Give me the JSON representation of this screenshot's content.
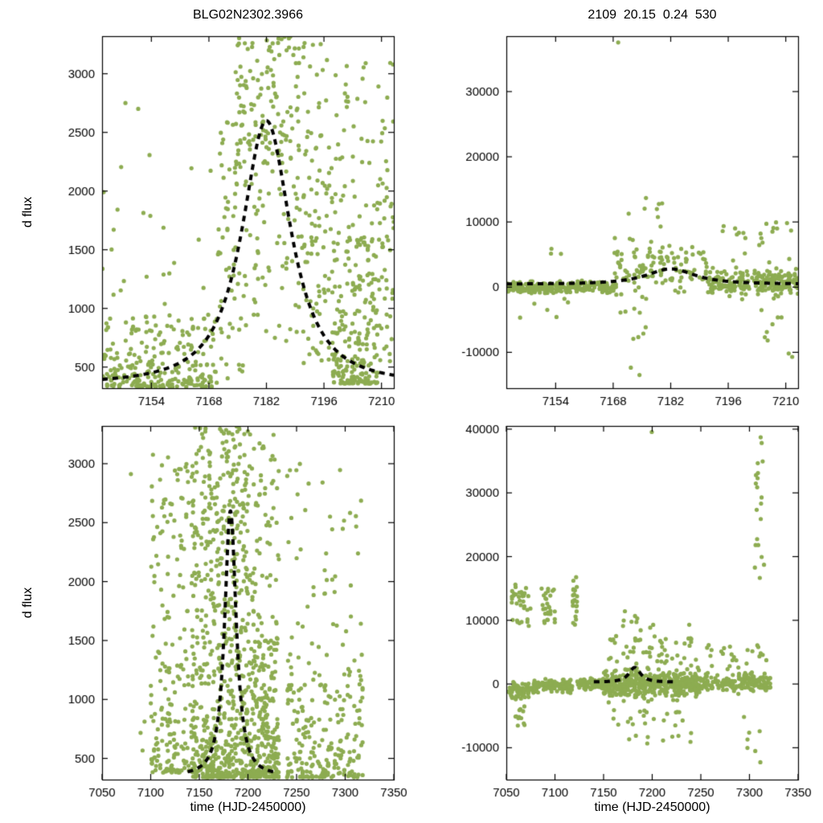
{
  "figure": {
    "background": "#ffffff",
    "point_color": "#8dac51",
    "curve_color": "#000000"
  },
  "chart_data": [
    {
      "panel": "top-left",
      "type": "scatter",
      "title": "BLG02N2302.3966",
      "xlabel": "",
      "ylabel": "d flux",
      "xlim": [
        7142,
        7213
      ],
      "ylim": [
        320,
        3320
      ],
      "xticks": [
        7154,
        7168,
        7182,
        7196,
        7210
      ],
      "yticks": [
        500,
        1000,
        1500,
        2000,
        2500,
        3000
      ],
      "grid": false,
      "legend": false,
      "point_color": "#8dac51",
      "model_curve": {
        "style": "dashed",
        "color": "#000000",
        "shape": "microlensing-peak",
        "t0": 7182,
        "baseline": 350,
        "amplitude": 2250,
        "width": 8,
        "power": 1.2,
        "peak_value": 2600,
        "x_range": [
          7142,
          7213
        ]
      },
      "scatter_clusters": [
        {
          "x": [
            7142,
            7170
          ],
          "y": [
            330,
            950
          ],
          "n": 260,
          "dist": "bottom"
        },
        {
          "x": [
            7142,
            7170
          ],
          "y": [
            950,
            2350
          ],
          "n": 22,
          "dist": "uniform"
        },
        {
          "x": [
            7146,
            7152
          ],
          "y": [
            2700,
            3100
          ],
          "n": 2,
          "dist": "uniform"
        },
        {
          "x": [
            7170,
            7178
          ],
          "y": [
            400,
            2600
          ],
          "n": 70,
          "dist": "uniform"
        },
        {
          "x": [
            7174,
            7190
          ],
          "y": [
            2200,
            3320
          ],
          "n": 130,
          "dist": "uniform"
        },
        {
          "x": [
            7178,
            7191
          ],
          "y": [
            700,
            2200
          ],
          "n": 60,
          "dist": "uniform"
        },
        {
          "x": [
            7191,
            7198
          ],
          "y": [
            500,
            2500
          ],
          "n": 80,
          "dist": "uniform"
        },
        {
          "x": [
            7191,
            7197
          ],
          "y": [
            2500,
            3300
          ],
          "n": 15,
          "dist": "uniform"
        },
        {
          "x": [
            7198,
            7209
          ],
          "y": [
            360,
            1650
          ],
          "n": 220,
          "dist": "bottom"
        },
        {
          "x": [
            7198,
            7209
          ],
          "y": [
            1650,
            3100
          ],
          "n": 40,
          "dist": "uniform"
        },
        {
          "x": [
            7209,
            7213
          ],
          "y": [
            400,
            3100
          ],
          "n": 55,
          "dist": "uniform"
        }
      ]
    },
    {
      "panel": "top-right",
      "type": "scatter",
      "title": "2109  20.15  0.24  530",
      "xlabel": "",
      "ylabel": "",
      "xlim": [
        7142,
        7213
      ],
      "ylim": [
        -15500,
        38500
      ],
      "xticks": [
        7154,
        7168,
        7182,
        7196,
        7210
      ],
      "yticks": [
        -10000,
        0,
        10000,
        20000,
        30000
      ],
      "grid": false,
      "legend": false,
      "point_color": "#8dac51",
      "model_curve": {
        "style": "dashed",
        "color": "#000000",
        "shape": "microlensing-peak",
        "t0": 7182,
        "baseline": 450,
        "amplitude": 2350,
        "width": 8,
        "power": 1.2,
        "peak_value": 2800,
        "x_range": [
          7142,
          7213
        ]
      },
      "scatter_clusters": [
        {
          "x": [
            7142,
            7169
          ],
          "y": [
            -1300,
            1300
          ],
          "n": 260,
          "dist": "center"
        },
        {
          "x": [
            7145,
            7160
          ],
          "y": [
            -4800,
            -1500
          ],
          "n": 6,
          "dist": "uniform"
        },
        {
          "x": [
            7151,
            7156
          ],
          "y": [
            4500,
            6800
          ],
          "n": 3,
          "dist": "uniform"
        },
        {
          "x": [
            7168,
            7191
          ],
          "y": [
            -2500,
            8500
          ],
          "n": 130,
          "dist": "center"
        },
        {
          "x": [
            7170,
            7180
          ],
          "y": [
            8500,
            14800
          ],
          "n": 8,
          "dist": "uniform"
        },
        {
          "x": [
            7169,
            7176
          ],
          "y": [
            -9500,
            -2500
          ],
          "n": 8,
          "dist": "uniform"
        },
        {
          "x": [
            7172,
            7175
          ],
          "y": [
            -13800,
            -11000
          ],
          "n": 2,
          "dist": "uniform"
        },
        {
          "x": [
            7191,
            7213
          ],
          "y": [
            -2200,
            3500
          ],
          "n": 230,
          "dist": "center"
        },
        {
          "x": [
            7194,
            7212
          ],
          "y": [
            3500,
            10500
          ],
          "n": 22,
          "dist": "uniform"
        },
        {
          "x": [
            7203,
            7212
          ],
          "y": [
            -12800,
            -3500
          ],
          "n": 9,
          "dist": "uniform"
        },
        {
          "x": [
            7169,
            7172
          ],
          "y": [
            36800,
            38000
          ],
          "n": 1,
          "dist": "uniform"
        }
      ]
    },
    {
      "panel": "bottom-left",
      "type": "scatter",
      "title": "",
      "xlabel": "time (HJD-2450000)",
      "ylabel": "d flux",
      "xlim": [
        7050,
        7350
      ],
      "ylim": [
        320,
        3320
      ],
      "xticks": [
        7050,
        7100,
        7150,
        7200,
        7250,
        7300,
        7350
      ],
      "yticks": [
        500,
        1000,
        1500,
        2000,
        2500,
        3000
      ],
      "grid": false,
      "legend": false,
      "point_color": "#8dac51",
      "model_curve": {
        "style": "dashed",
        "color": "#000000",
        "shape": "microlensing-peak",
        "t0": 7182,
        "baseline": 350,
        "amplitude": 2250,
        "width": 8,
        "power": 1.2,
        "peak_value": 2600,
        "x_range": [
          7138,
          7228
        ]
      },
      "scatter_clusters": [
        {
          "x": [
            7078,
            7082
          ],
          "y": [
            2800,
            3000
          ],
          "n": 1,
          "dist": "uniform"
        },
        {
          "x": [
            7086,
            7096
          ],
          "y": [
            500,
            850
          ],
          "n": 3,
          "dist": "uniform"
        },
        {
          "x": [
            7100,
            7142
          ],
          "y": [
            380,
            1400
          ],
          "n": 120,
          "dist": "bottom"
        },
        {
          "x": [
            7100,
            7142
          ],
          "y": [
            1400,
            3100
          ],
          "n": 70,
          "dist": "uniform"
        },
        {
          "x": [
            7142,
            7200
          ],
          "y": [
            340,
            1500
          ],
          "n": 380,
          "dist": "bottom"
        },
        {
          "x": [
            7142,
            7200
          ],
          "y": [
            1500,
            3320
          ],
          "n": 280,
          "dist": "uniform"
        },
        {
          "x": [
            7200,
            7232
          ],
          "y": [
            340,
            1500
          ],
          "n": 260,
          "dist": "bottom"
        },
        {
          "x": [
            7200,
            7232
          ],
          "y": [
            1500,
            3250
          ],
          "n": 70,
          "dist": "uniform"
        },
        {
          "x": [
            7240,
            7318
          ],
          "y": [
            340,
            1400
          ],
          "n": 220,
          "dist": "bottom"
        },
        {
          "x": [
            7240,
            7318
          ],
          "y": [
            1400,
            3000
          ],
          "n": 45,
          "dist": "uniform"
        }
      ]
    },
    {
      "panel": "bottom-right",
      "type": "scatter",
      "title": "",
      "xlabel": "time (HJD-2450000)",
      "ylabel": "",
      "xlim": [
        7050,
        7350
      ],
      "ylim": [
        -15000,
        40500
      ],
      "xticks": [
        7050,
        7100,
        7150,
        7200,
        7250,
        7300,
        7350
      ],
      "yticks": [
        -10000,
        0,
        10000,
        20000,
        30000,
        40000
      ],
      "grid": false,
      "legend": false,
      "point_color": "#8dac51",
      "model_curve": {
        "style": "dashed",
        "color": "#000000",
        "shape": "microlensing-peak",
        "t0": 7182,
        "baseline": 300,
        "amplitude": 2300,
        "width": 8,
        "power": 1.2,
        "peak_value": 2600,
        "x_range": [
          7140,
          7225
        ]
      },
      "scatter_clusters": [
        {
          "x": [
            7052,
            7078
          ],
          "y": [
            -3000,
            800
          ],
          "n": 70,
          "dist": "center"
        },
        {
          "x": [
            7055,
            7075
          ],
          "y": [
            9000,
            15800
          ],
          "n": 35,
          "dist": "uniform"
        },
        {
          "x": [
            7058,
            7070
          ],
          "y": [
            -7000,
            -3000
          ],
          "n": 12,
          "dist": "uniform"
        },
        {
          "x": [
            7085,
            7100
          ],
          "y": [
            9500,
            15200
          ],
          "n": 28,
          "dist": "uniform"
        },
        {
          "x": [
            7078,
            7118
          ],
          "y": [
            -1800,
            1200
          ],
          "n": 130,
          "dist": "center"
        },
        {
          "x": [
            7118,
            7123
          ],
          "y": [
            9000,
            16800
          ],
          "n": 22,
          "dist": "uniform"
        },
        {
          "x": [
            7123,
            7150
          ],
          "y": [
            -1200,
            1200
          ],
          "n": 90,
          "dist": "center"
        },
        {
          "x": [
            7150,
            7250
          ],
          "y": [
            -3200,
            3200
          ],
          "n": 430,
          "dist": "center"
        },
        {
          "x": [
            7155,
            7245
          ],
          "y": [
            3200,
            9500
          ],
          "n": 55,
          "dist": "uniform"
        },
        {
          "x": [
            7160,
            7240
          ],
          "y": [
            -9500,
            -3200
          ],
          "n": 28,
          "dist": "uniform"
        },
        {
          "x": [
            7170,
            7185
          ],
          "y": [
            9500,
            12500
          ],
          "n": 6,
          "dist": "uniform"
        },
        {
          "x": [
            7193,
            7200
          ],
          "y": [
            38500,
            39800
          ],
          "n": 1,
          "dist": "uniform"
        },
        {
          "x": [
            7250,
            7322
          ],
          "y": [
            -1800,
            2200
          ],
          "n": 170,
          "dist": "center"
        },
        {
          "x": [
            7255,
            7318
          ],
          "y": [
            2200,
            6500
          ],
          "n": 25,
          "dist": "uniform"
        },
        {
          "x": [
            7305,
            7315
          ],
          "y": [
            16500,
            40000
          ],
          "n": 20,
          "dist": "uniform"
        },
        {
          "x": [
            7290,
            7312
          ],
          "y": [
            -13000,
            -4500
          ],
          "n": 7,
          "dist": "uniform"
        }
      ]
    }
  ]
}
